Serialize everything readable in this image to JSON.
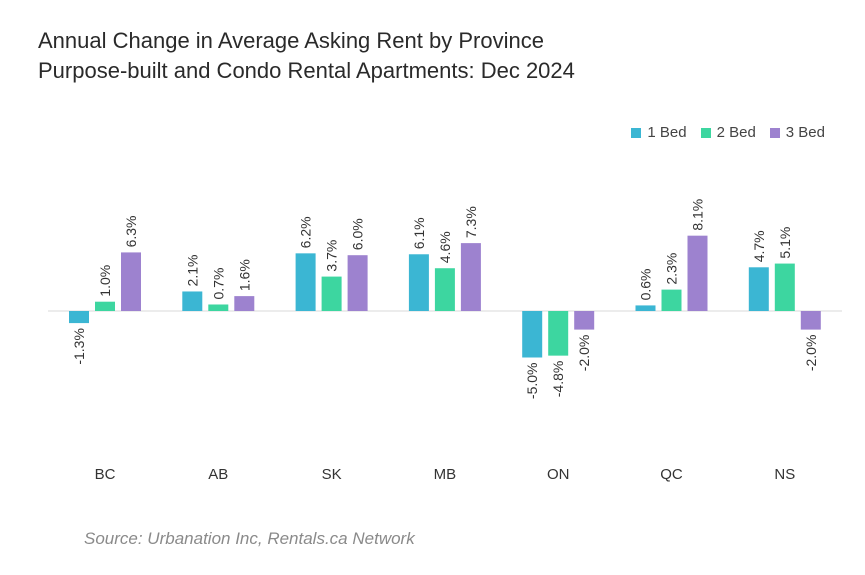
{
  "colors": {
    "1 Bed": "#3bb6d3",
    "2 Bed": "#3dd6a0",
    "3 Bed": "#9d82cf",
    "zero_line": "#d8d8d8"
  },
  "chart_data": {
    "type": "bar",
    "title": "Annual Change in Average Asking Rent by Province",
    "subtitle": "Purpose-built and Condo Rental Apartments: Dec 2024",
    "categories": [
      "BC",
      "AB",
      "SK",
      "MB",
      "ON",
      "QC",
      "NS"
    ],
    "series": [
      {
        "name": "1 Bed",
        "values": [
          -1.3,
          2.1,
          6.2,
          6.1,
          -5.0,
          0.6,
          4.7
        ]
      },
      {
        "name": "2 Bed",
        "values": [
          1.0,
          0.7,
          3.7,
          4.6,
          -4.8,
          2.3,
          5.1
        ]
      },
      {
        "name": "3 Bed",
        "values": [
          6.3,
          1.6,
          6.0,
          7.3,
          -2.0,
          8.1,
          -2.0
        ]
      }
    ],
    "data_labels": [
      [
        "-1.3%",
        "1.0%",
        "6.3%"
      ],
      [
        "2.1%",
        "0.7%",
        "1.6%"
      ],
      [
        "6.2%",
        "3.7%",
        "6.0%"
      ],
      [
        "6.1%",
        "4.6%",
        "7.3%"
      ],
      [
        "-5.0%",
        "-4.8%",
        "-2.0%"
      ],
      [
        "0.6%",
        "2.3%",
        "8.1%"
      ],
      [
        "4.7%",
        "5.1%",
        "-2.0%"
      ]
    ],
    "ylim": [
      -10,
      10
    ],
    "grid": false,
    "legend_position": "top-right"
  },
  "legend": [
    {
      "label": "1 Bed",
      "color": "#3bb6d3"
    },
    {
      "label": "2 Bed",
      "color": "#3dd6a0"
    },
    {
      "label": "3 Bed",
      "color": "#9d82cf"
    }
  ],
  "source": "Source: Urbanation Inc, Rentals.ca Network"
}
